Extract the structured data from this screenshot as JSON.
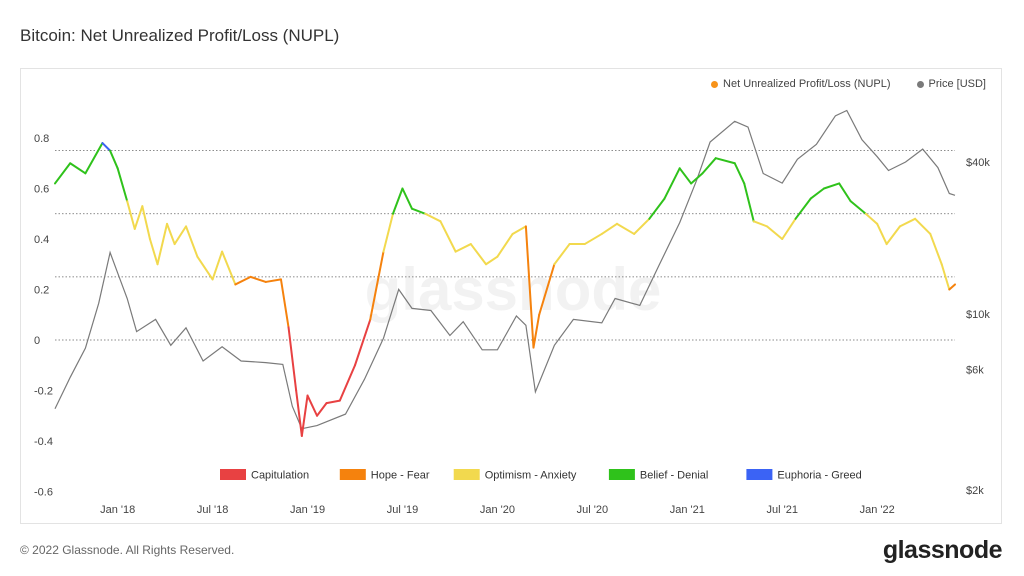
{
  "header": {
    "title": "Bitcoin: Net Unrealized Profit/Loss (NUPL)"
  },
  "footer": {
    "copyright": "© 2022 Glassnode. All Rights Reserved.",
    "logo": "glassnode"
  },
  "watermark": "glassnode",
  "colors": {
    "nupl": "#f7931a",
    "price": "#7a7a7a",
    "grid": "#bbbbbb"
  },
  "chart_data": {
    "type": "line",
    "legend_top": [
      {
        "name": "Net Unrealized Profit/Loss (NUPL)",
        "color": "#f7931a"
      },
      {
        "name": "Price [USD]",
        "color": "#7a7a7a"
      }
    ],
    "x_ticks": [
      "Jan '18",
      "Jul '18",
      "Jan '19",
      "Jul '19",
      "Jan '20",
      "Jul '20",
      "Jan '21",
      "Jul '21",
      "Jan '22"
    ],
    "y_left_ticks": [
      "0.8",
      "0.6",
      "0.4",
      "0.2",
      "0",
      "-0.2",
      "-0.4",
      "-0.6"
    ],
    "y_left_range": [
      -0.6,
      0.8
    ],
    "y_right_ticks": [
      "$40k",
      "$10k",
      "$6k",
      "$2k"
    ],
    "zones": [
      {
        "name": "Capitulation",
        "color": "#e84142"
      },
      {
        "name": "Hope - Fear",
        "color": "#f5820d"
      },
      {
        "name": "Optimism - Anxiety",
        "color": "#f2d94e"
      },
      {
        "name": "Belief - Denial",
        "color": "#2fc21b"
      },
      {
        "name": "Euphoria - Greed",
        "color": "#3b63f5"
      }
    ],
    "zone_thresholds": [
      0,
      0.25,
      0.5,
      0.75
    ],
    "nupl": [
      {
        "x": 2017.67,
        "y": 0.62
      },
      {
        "x": 2017.75,
        "y": 0.7
      },
      {
        "x": 2017.83,
        "y": 0.66
      },
      {
        "x": 2017.92,
        "y": 0.78
      },
      {
        "x": 2017.96,
        "y": 0.75
      },
      {
        "x": 2018.0,
        "y": 0.68
      },
      {
        "x": 2018.05,
        "y": 0.55
      },
      {
        "x": 2018.09,
        "y": 0.44
      },
      {
        "x": 2018.13,
        "y": 0.53
      },
      {
        "x": 2018.17,
        "y": 0.4
      },
      {
        "x": 2018.21,
        "y": 0.3
      },
      {
        "x": 2018.26,
        "y": 0.46
      },
      {
        "x": 2018.3,
        "y": 0.38
      },
      {
        "x": 2018.36,
        "y": 0.45
      },
      {
        "x": 2018.42,
        "y": 0.33
      },
      {
        "x": 2018.5,
        "y": 0.24
      },
      {
        "x": 2018.55,
        "y": 0.35
      },
      {
        "x": 2018.62,
        "y": 0.22
      },
      {
        "x": 2018.7,
        "y": 0.25
      },
      {
        "x": 2018.78,
        "y": 0.23
      },
      {
        "x": 2018.86,
        "y": 0.24
      },
      {
        "x": 2018.9,
        "y": 0.05
      },
      {
        "x": 2018.94,
        "y": -0.2
      },
      {
        "x": 2018.97,
        "y": -0.38
      },
      {
        "x": 2019.0,
        "y": -0.22
      },
      {
        "x": 2019.05,
        "y": -0.3
      },
      {
        "x": 2019.1,
        "y": -0.25
      },
      {
        "x": 2019.17,
        "y": -0.24
      },
      {
        "x": 2019.25,
        "y": -0.1
      },
      {
        "x": 2019.33,
        "y": 0.08
      },
      {
        "x": 2019.4,
        "y": 0.35
      },
      {
        "x": 2019.45,
        "y": 0.5
      },
      {
        "x": 2019.5,
        "y": 0.6
      },
      {
        "x": 2019.55,
        "y": 0.52
      },
      {
        "x": 2019.62,
        "y": 0.5
      },
      {
        "x": 2019.7,
        "y": 0.47
      },
      {
        "x": 2019.78,
        "y": 0.35
      },
      {
        "x": 2019.86,
        "y": 0.38
      },
      {
        "x": 2019.94,
        "y": 0.3
      },
      {
        "x": 2020.0,
        "y": 0.33
      },
      {
        "x": 2020.08,
        "y": 0.42
      },
      {
        "x": 2020.15,
        "y": 0.45
      },
      {
        "x": 2020.19,
        "y": -0.03
      },
      {
        "x": 2020.22,
        "y": 0.1
      },
      {
        "x": 2020.3,
        "y": 0.3
      },
      {
        "x": 2020.38,
        "y": 0.38
      },
      {
        "x": 2020.46,
        "y": 0.38
      },
      {
        "x": 2020.55,
        "y": 0.42
      },
      {
        "x": 2020.63,
        "y": 0.46
      },
      {
        "x": 2020.72,
        "y": 0.42
      },
      {
        "x": 2020.8,
        "y": 0.48
      },
      {
        "x": 2020.88,
        "y": 0.56
      },
      {
        "x": 2020.96,
        "y": 0.68
      },
      {
        "x": 2021.02,
        "y": 0.62
      },
      {
        "x": 2021.08,
        "y": 0.66
      },
      {
        "x": 2021.15,
        "y": 0.72
      },
      {
        "x": 2021.25,
        "y": 0.7
      },
      {
        "x": 2021.3,
        "y": 0.62
      },
      {
        "x": 2021.35,
        "y": 0.47
      },
      {
        "x": 2021.42,
        "y": 0.45
      },
      {
        "x": 2021.5,
        "y": 0.4
      },
      {
        "x": 2021.57,
        "y": 0.48
      },
      {
        "x": 2021.65,
        "y": 0.56
      },
      {
        "x": 2021.72,
        "y": 0.6
      },
      {
        "x": 2021.8,
        "y": 0.62
      },
      {
        "x": 2021.86,
        "y": 0.55
      },
      {
        "x": 2021.94,
        "y": 0.5
      },
      {
        "x": 2022.0,
        "y": 0.46
      },
      {
        "x": 2022.05,
        "y": 0.38
      },
      {
        "x": 2022.12,
        "y": 0.45
      },
      {
        "x": 2022.2,
        "y": 0.48
      },
      {
        "x": 2022.28,
        "y": 0.42
      },
      {
        "x": 2022.34,
        "y": 0.3
      },
      {
        "x": 2022.38,
        "y": 0.2
      },
      {
        "x": 2022.41,
        "y": 0.22
      }
    ],
    "price": [
      {
        "x": 2017.67,
        "y": 4200
      },
      {
        "x": 2017.75,
        "y": 5600
      },
      {
        "x": 2017.83,
        "y": 7300
      },
      {
        "x": 2017.9,
        "y": 11000
      },
      {
        "x": 2017.96,
        "y": 17500
      },
      {
        "x": 2018.0,
        "y": 14500
      },
      {
        "x": 2018.05,
        "y": 11500
      },
      {
        "x": 2018.1,
        "y": 8500
      },
      {
        "x": 2018.2,
        "y": 9500
      },
      {
        "x": 2018.28,
        "y": 7500
      },
      {
        "x": 2018.36,
        "y": 8800
      },
      {
        "x": 2018.45,
        "y": 6500
      },
      {
        "x": 2018.55,
        "y": 7400
      },
      {
        "x": 2018.65,
        "y": 6500
      },
      {
        "x": 2018.78,
        "y": 6400
      },
      {
        "x": 2018.87,
        "y": 6300
      },
      {
        "x": 2018.92,
        "y": 4300
      },
      {
        "x": 2018.97,
        "y": 3500
      },
      {
        "x": 2019.05,
        "y": 3600
      },
      {
        "x": 2019.2,
        "y": 4000
      },
      {
        "x": 2019.3,
        "y": 5500
      },
      {
        "x": 2019.4,
        "y": 8000
      },
      {
        "x": 2019.48,
        "y": 12500
      },
      {
        "x": 2019.55,
        "y": 10500
      },
      {
        "x": 2019.65,
        "y": 10300
      },
      {
        "x": 2019.75,
        "y": 8200
      },
      {
        "x": 2019.82,
        "y": 9300
      },
      {
        "x": 2019.92,
        "y": 7200
      },
      {
        "x": 2020.0,
        "y": 7200
      },
      {
        "x": 2020.1,
        "y": 9800
      },
      {
        "x": 2020.15,
        "y": 9000
      },
      {
        "x": 2020.2,
        "y": 4900
      },
      {
        "x": 2020.3,
        "y": 7500
      },
      {
        "x": 2020.4,
        "y": 9500
      },
      {
        "x": 2020.55,
        "y": 9200
      },
      {
        "x": 2020.62,
        "y": 11500
      },
      {
        "x": 2020.75,
        "y": 10800
      },
      {
        "x": 2020.85,
        "y": 15500
      },
      {
        "x": 2020.96,
        "y": 23000
      },
      {
        "x": 2021.05,
        "y": 34000
      },
      {
        "x": 2021.12,
        "y": 48000
      },
      {
        "x": 2021.25,
        "y": 58000
      },
      {
        "x": 2021.32,
        "y": 55000
      },
      {
        "x": 2021.4,
        "y": 36000
      },
      {
        "x": 2021.5,
        "y": 33000
      },
      {
        "x": 2021.58,
        "y": 41000
      },
      {
        "x": 2021.68,
        "y": 47000
      },
      {
        "x": 2021.78,
        "y": 61000
      },
      {
        "x": 2021.84,
        "y": 64000
      },
      {
        "x": 2021.92,
        "y": 49000
      },
      {
        "x": 2022.0,
        "y": 42000
      },
      {
        "x": 2022.06,
        "y": 37000
      },
      {
        "x": 2022.15,
        "y": 40000
      },
      {
        "x": 2022.24,
        "y": 45000
      },
      {
        "x": 2022.32,
        "y": 38000
      },
      {
        "x": 2022.38,
        "y": 30000
      },
      {
        "x": 2022.41,
        "y": 29500
      }
    ]
  }
}
